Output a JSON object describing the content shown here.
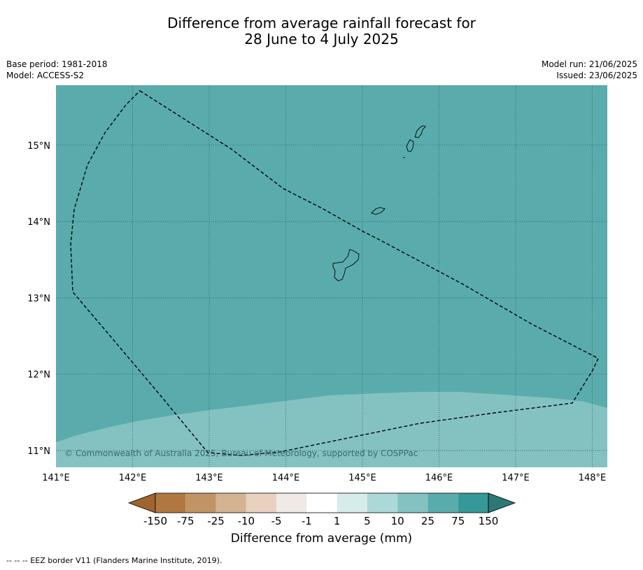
{
  "title": {
    "line1": "Difference from average rainfall forecast for",
    "line2": "28 June to 4 July 2025"
  },
  "meta": {
    "base_period": "Base period: 1981-2018",
    "model": "Model: ACCESS-S2",
    "model_run": "Model run: 21/06/2025",
    "issued": "Issued: 23/06/2025"
  },
  "map": {
    "lon_range": [
      141.0,
      148.2
    ],
    "lat_range": [
      10.8,
      15.8
    ],
    "lon_ticks": [
      141,
      142,
      143,
      144,
      145,
      146,
      147,
      148
    ],
    "lat_ticks": [
      11,
      12,
      13,
      14,
      15
    ],
    "lon_labels": [
      "141°E",
      "142°E",
      "143°E",
      "144°E",
      "145°E",
      "146°E",
      "147°E",
      "148°E"
    ],
    "lat_labels": [
      "11°N",
      "12°N",
      "13°N",
      "14°N",
      "15°N"
    ],
    "primary_fill": "#5aacac",
    "secondary_fill": "#84c2c2",
    "copyright": "© Commonwealth of Australia 2025, Bureau of Meteorology, supported by COSPPac"
  },
  "colorbar": {
    "labels": [
      "-150",
      "-75",
      "-25",
      "-10",
      "-5",
      "-1",
      "1",
      "5",
      "10",
      "25",
      "75",
      "150"
    ],
    "colors": [
      "#a0642f",
      "#b07840",
      "#c19466",
      "#d3b392",
      "#e8d1bf",
      "#efeae6",
      "#ffffff",
      "#d6ecea",
      "#acd8d8",
      "#84c2c2",
      "#5aacac",
      "#369898",
      "#2c7878"
    ],
    "title": "Difference from average (mm)"
  },
  "footer": "--  --  -- EEZ border V11 (Flanders Marine Institute, 2019)."
}
